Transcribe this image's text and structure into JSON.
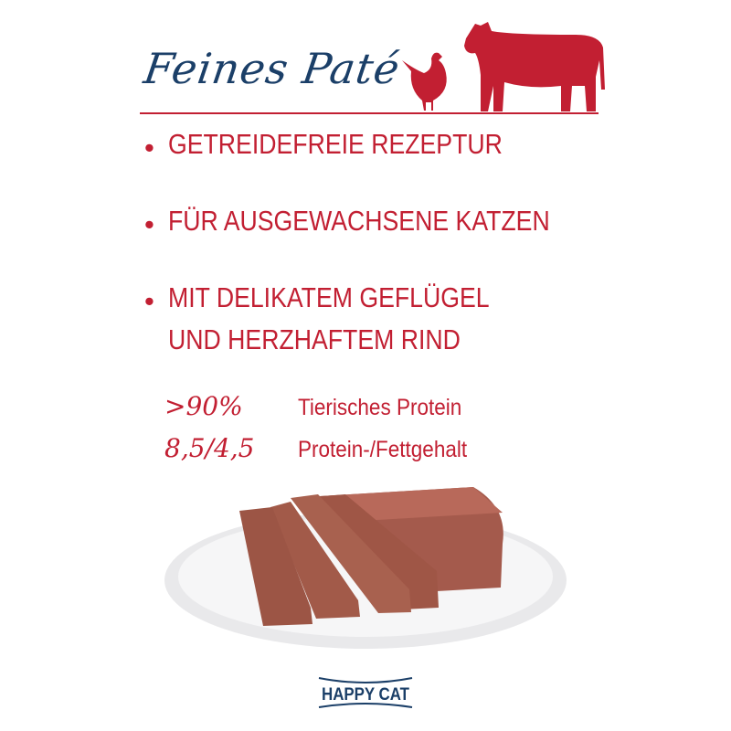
{
  "header": {
    "title": "Feines Paté",
    "icons": [
      "chicken-icon",
      "cow-icon"
    ]
  },
  "bullets": [
    {
      "lines": [
        "GETREIDEFREIE REZEPTUR"
      ]
    },
    {
      "lines": [
        "FÜR AUSGEWACHSENE KATZEN"
      ]
    },
    {
      "lines": [
        "MIT DELIKATEM GEFLÜGEL",
        "UND HERZHAFTEM RIND"
      ]
    }
  ],
  "bullet_symbol": "•",
  "stats": [
    {
      "value": ">90%",
      "label": "Tierisches Protein"
    },
    {
      "value": "8,5/4,5",
      "label": "Protein-/Fettgehalt"
    }
  ],
  "brand": {
    "logo_text": "HAPPY CAT"
  },
  "colors": {
    "accent": "#c21f32",
    "brand": "#1b3f68"
  }
}
